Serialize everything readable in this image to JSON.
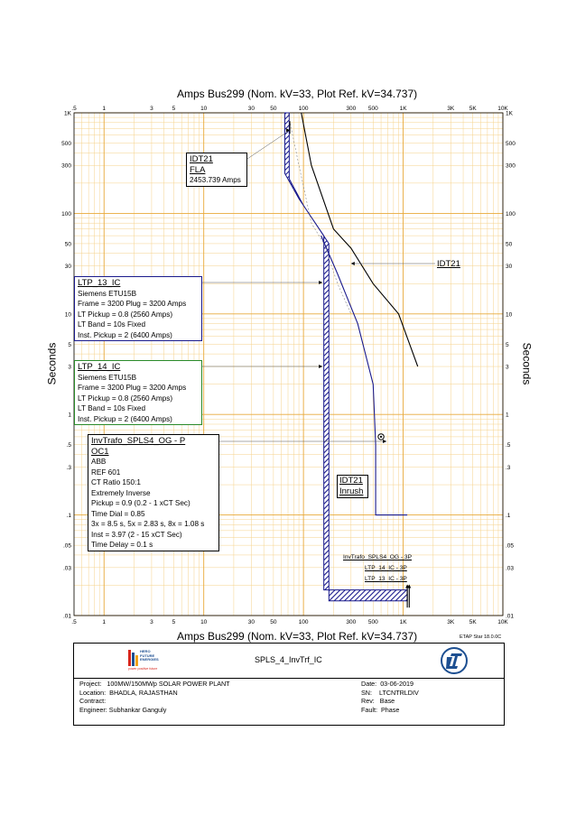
{
  "chart_data": {
    "type": "line",
    "title_top": "Amps   Bus299 (Nom. kV=33, Plot Ref. kV=34.737)",
    "title_bottom": "Amps   Bus299 (Nom. kV=33, Plot Ref. kV=34.737)",
    "ylabel_left": "Seconds",
    "ylabel_right": "Seconds",
    "x_scale": "log",
    "y_scale": "log",
    "xlim": [
      0.5,
      10000
    ],
    "ylim": [
      0.01,
      1000
    ],
    "x_ticks": [
      {
        "v": 0.5,
        "label": ".5"
      },
      {
        "v": 1,
        "label": "1"
      },
      {
        "v": 3,
        "label": "3"
      },
      {
        "v": 5,
        "label": "5"
      },
      {
        "v": 10,
        "label": "10"
      },
      {
        "v": 30,
        "label": "30"
      },
      {
        "v": 50,
        "label": "50"
      },
      {
        "v": 100,
        "label": "100"
      },
      {
        "v": 300,
        "label": "300"
      },
      {
        "v": 500,
        "label": "500"
      },
      {
        "v": 1000,
        "label": "1K"
      },
      {
        "v": 3000,
        "label": "3K"
      },
      {
        "v": 5000,
        "label": "5K"
      },
      {
        "v": 10000,
        "label": "10K"
      }
    ],
    "y_ticks": [
      {
        "v": 1000,
        "label": "1K"
      },
      {
        "v": 500,
        "label": "500"
      },
      {
        "v": 300,
        "label": "300"
      },
      {
        "v": 100,
        "label": "100"
      },
      {
        "v": 50,
        "label": "50"
      },
      {
        "v": 30,
        "label": "30"
      },
      {
        "v": 10,
        "label": "10"
      },
      {
        "v": 5,
        "label": "5"
      },
      {
        "v": 3,
        "label": "3"
      },
      {
        "v": 1,
        "label": "1"
      },
      {
        "v": 0.5,
        "label": ".5"
      },
      {
        "v": 0.3,
        "label": ".3"
      },
      {
        "v": 0.1,
        "label": ".1"
      },
      {
        "v": 0.05,
        "label": ".05"
      },
      {
        "v": 0.03,
        "label": ".03"
      },
      {
        "v": 0.01,
        "label": ".01"
      }
    ],
    "grid": true,
    "series": [
      {
        "name": "IDT21",
        "color": "#000000",
        "points": [
          [
            95,
            1000
          ],
          [
            120,
            300
          ],
          [
            200,
            70
          ],
          [
            300,
            45
          ],
          [
            500,
            20
          ],
          [
            900,
            10
          ],
          [
            1400,
            3
          ]
        ]
      },
      {
        "name": "InvTrafo_SPLS4_OG - 3P",
        "color": "#1a1a8c",
        "points": [
          [
            150,
            60
          ],
          [
            220,
            25
          ],
          [
            350,
            8
          ],
          [
            500,
            2
          ],
          [
            530,
            0.5
          ],
          [
            530,
            0.1
          ],
          [
            1100,
            0.1
          ]
        ]
      },
      {
        "name": "IDT21 Inrush",
        "color": "#888888",
        "points": [
          [
            70,
            1000
          ],
          [
            90,
            300
          ],
          [
            120,
            80
          ],
          [
            160,
            50
          ],
          [
            220,
            20
          ],
          [
            300,
            10
          ]
        ]
      },
      {
        "name": "LTP_14_IC - 3P",
        "color": "#000000",
        "points": [
          [
            1100,
            0.02
          ],
          [
            1100,
            0.012
          ]
        ]
      },
      {
        "name": "LTP_13_IC - 3P",
        "color": "#000000",
        "points": [
          [
            1150,
            0.02
          ],
          [
            1150,
            0.012
          ]
        ]
      }
    ],
    "band": {
      "name": "LTP_13_IC / LTP_14_IC (Siemens ETU15B)",
      "color": "#1a1a8c",
      "left": [
        [
          65,
          1000
        ],
        [
          65,
          250
        ],
        [
          90,
          140
        ],
        [
          160,
          60
        ],
        [
          160,
          0.018
        ],
        [
          1100,
          0.018
        ]
      ],
      "right": [
        [
          72,
          1000
        ],
        [
          72,
          220
        ],
        [
          100,
          120
        ],
        [
          180,
          50
        ],
        [
          180,
          0.014
        ],
        [
          1100,
          0.014
        ]
      ]
    },
    "fla_marker": {
      "x": 73,
      "y": 700
    },
    "relay_point": {
      "x": 600,
      "y": 0.6
    },
    "annotations": {
      "idt21_fla": {
        "title": "IDT21",
        "sub": "FLA",
        "value": "2453.739 Amps"
      },
      "idt21_right": "IDT21",
      "ltp13": {
        "title": "LTP_13_IC",
        "lines": [
          "Siemens  ETU15B",
          "Frame = 3200 Plug = 3200 Amps",
          "LT Pickup = 0.8 (2560 Amps)",
          "LT Band = 10s Fixed",
          "Inst. Pickup = 2 (6400 Amps)"
        ]
      },
      "ltp14": {
        "title": "LTP_14_IC",
        "lines": [
          "Siemens  ETU15B",
          "Frame = 3200 Plug = 3200 Amps",
          "LT Pickup = 0.8 (2560 Amps)",
          "LT Band = 10s Fixed",
          "Inst. Pickup = 2 (6400 Amps)"
        ]
      },
      "invtrafo": {
        "title": "InvTrafo_SPLS4_OG - P",
        "title2": "OC1",
        "lines": [
          "ABB",
          "REF 601",
          "CT Ratio 150:1",
          "Extremely Inverse",
          "Pickup = 0.9 (0.2 - 1  xCT Sec)",
          "Time Dial = 0.85",
          "3x = 8.5 s, 5x = 2.83 s, 8x = 1.08 s",
          "Inst = 3.97 (2 - 15  xCT Sec)",
          "Time Delay = 0.1 s"
        ]
      },
      "inrush": {
        "title": "IDT21",
        "sub": "Inrush"
      },
      "curve_labels": [
        "InvTrafo_SPLS4_OG - 3P",
        "LTP_14_IC - 3P",
        "LTP_13_IC - 3P"
      ]
    }
  },
  "footer": {
    "version": "ETAP Star 18.0.0C",
    "logo_text": [
      "HERO",
      "FUTURE",
      "ENERGIES"
    ],
    "logo_tagline": "power positive future",
    "plot_name": "SPLS_4_InvTrf_IC",
    "project_label": "Project:",
    "project": "100MW/150MWp SOLAR POWER PLANT",
    "location_label": "Location:",
    "location": "BHADLA, RAJASTHAN",
    "contract_label": "Contract:",
    "contract": "",
    "engineer_label": "Engineer:",
    "engineer": "Subhankar Ganguly",
    "date_label": "Date:",
    "date": "03-06-2019",
    "sn_label": "SN:",
    "sn": "LTCNTRLDIV",
    "rev_label": "Rev:",
    "rev": "Base",
    "fault_label": "Fault:",
    "fault": "Phase"
  }
}
